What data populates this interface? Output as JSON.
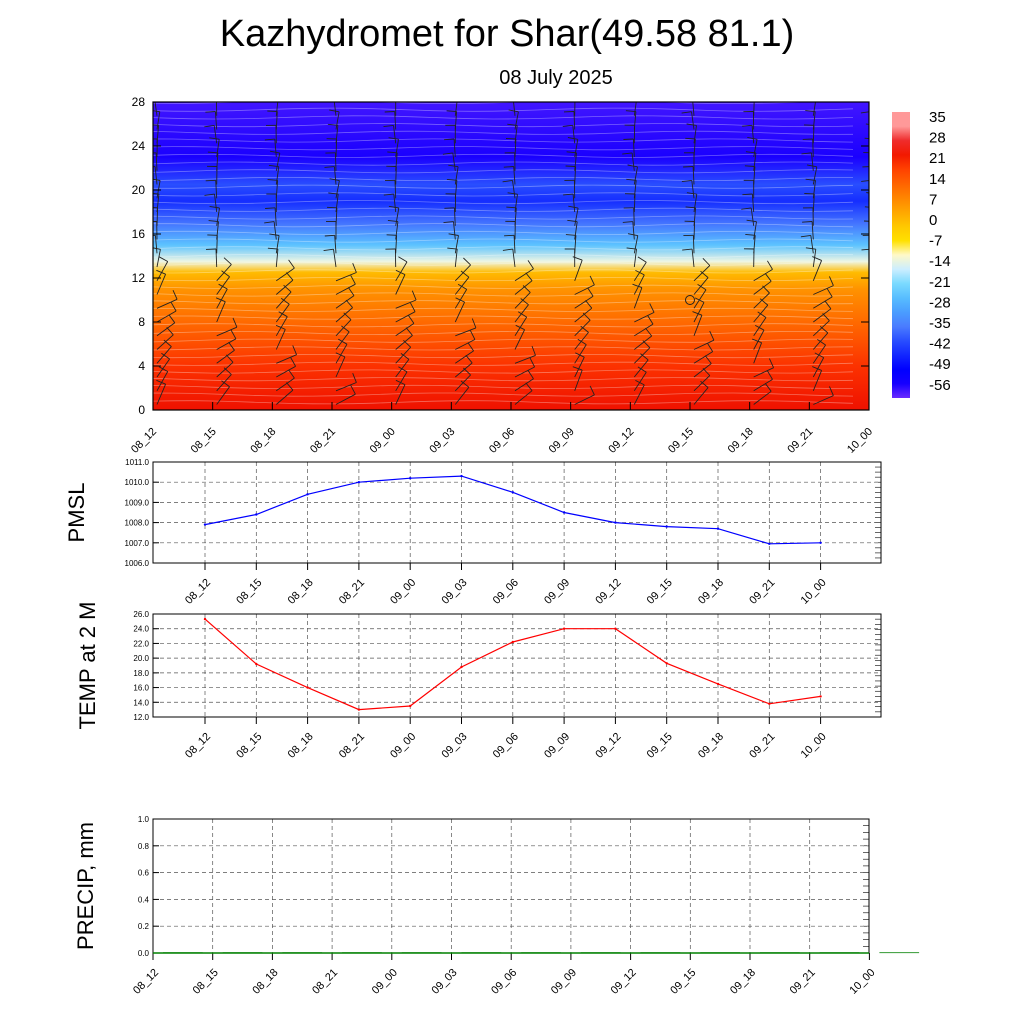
{
  "title": "Kazhydromet for Shar(49.58 81.1)",
  "subtitle": "08 July 2025",
  "chart_data": [
    {
      "type": "heatmap",
      "title": "Kazhydromet for Shar(49.58 81.1)",
      "subtitle": "08 July 2025",
      "x_tick_labels": [
        "08_12",
        "08_15",
        "08_18",
        "08_21",
        "09_00",
        "09_03",
        "09_06",
        "09_09",
        "09_12",
        "09_15",
        "09_18",
        "09_21",
        "10_00"
      ],
      "y_tick_labels": [
        "0",
        "4",
        "8",
        "12",
        "16",
        "20",
        "24",
        "28"
      ],
      "ylim": [
        0,
        28
      ],
      "colorbar_labels": [
        "35",
        "28",
        "21",
        "14",
        "7",
        "0",
        "-7",
        "-14",
        "-21",
        "-28",
        "-35",
        "-42",
        "-49",
        "-56"
      ],
      "value_profile": [
        {
          "y": 0,
          "value": 26
        },
        {
          "y": 4,
          "value": 22
        },
        {
          "y": 8,
          "value": 14
        },
        {
          "y": 11,
          "value": 8
        },
        {
          "y": 12.5,
          "value": 2
        },
        {
          "y": 13.5,
          "value": -12
        },
        {
          "y": 15,
          "value": -24
        },
        {
          "y": 17,
          "value": -36
        },
        {
          "y": 19,
          "value": -44
        },
        {
          "y": 20.5,
          "value": -40
        },
        {
          "y": 23,
          "value": -56
        },
        {
          "y": 28,
          "value": -58
        }
      ],
      "overlay": "wind barbs",
      "calm_marker": {
        "x_tick": "09_15",
        "y": 10
      }
    },
    {
      "type": "line",
      "ylabel": "PMSL",
      "x_tick_labels": [
        "08_12",
        "08_15",
        "08_18",
        "08_21",
        "09_00",
        "09_03",
        "09_06",
        "09_09",
        "09_12",
        "09_15",
        "09_18",
        "09_21",
        "10_00"
      ],
      "y_tick_labels": [
        "1011.0",
        "1010.0",
        "1009.0",
        "1008.0",
        "1007.0",
        "1006.0"
      ],
      "ylim": [
        1006,
        1011
      ],
      "grid": true,
      "series": [
        {
          "color": "#0000ff",
          "values": [
            1007.9,
            1008.4,
            1009.4,
            1010.0,
            1010.2,
            1010.3,
            1009.5,
            1008.5,
            1008.0,
            1007.8,
            1007.7,
            1006.95,
            1007.0
          ]
        }
      ]
    },
    {
      "type": "line",
      "ylabel": "TEMP at 2 M",
      "x_tick_labels": [
        "08_12",
        "08_15",
        "08_18",
        "08_21",
        "09_00",
        "09_03",
        "09_06",
        "09_09",
        "09_12",
        "09_15",
        "09_18",
        "09_21",
        "10_00"
      ],
      "y_tick_labels": [
        "26.0",
        "24.0",
        "22.0",
        "20.0",
        "18.0",
        "16.0",
        "14.0",
        "12.0"
      ],
      "ylim": [
        12,
        26
      ],
      "grid": true,
      "series": [
        {
          "color": "#ff0000",
          "values": [
            25.3,
            19.2,
            16.0,
            13.0,
            13.5,
            18.8,
            22.2,
            24.0,
            24.0,
            19.3,
            16.5,
            13.8,
            14.8
          ]
        }
      ]
    },
    {
      "type": "bar",
      "ylabel": "PRECIP, mm",
      "x_tick_labels": [
        "08_12",
        "08_15",
        "08_18",
        "08_21",
        "09_00",
        "09_03",
        "09_06",
        "09_09",
        "09_12",
        "09_15",
        "09_18",
        "09_21",
        "10_00"
      ],
      "y_tick_labels": [
        "1.0",
        "0.8",
        "0.6",
        "0.4",
        "0.2",
        "0.0"
      ],
      "ylim": [
        0,
        1
      ],
      "grid": true,
      "values": [
        0,
        0,
        0,
        0,
        0,
        0,
        0,
        0,
        0,
        0,
        0,
        0,
        0
      ],
      "bar_color": "#008000"
    }
  ]
}
